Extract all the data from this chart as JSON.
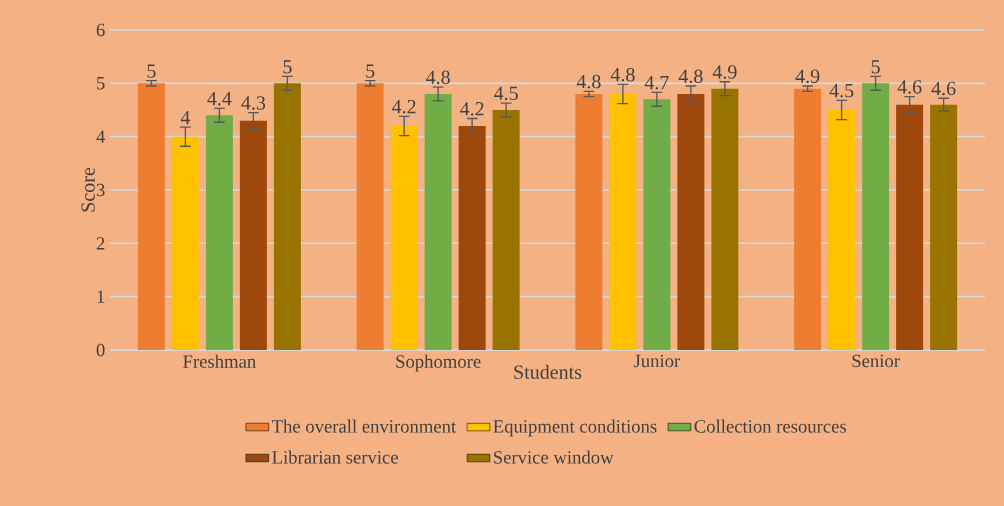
{
  "chart_data": {
    "type": "bar",
    "xlabel": "Students",
    "ylabel": "Score",
    "categories": [
      "Freshman",
      "Sophomore",
      "Junior",
      "Senior"
    ],
    "series": [
      {
        "name": "The overall environment",
        "color": "#ed7d31",
        "values": [
          5,
          5,
          4.8,
          4.9
        ],
        "errors": [
          0.05,
          0.05,
          0.05,
          0.05
        ]
      },
      {
        "name": "Equipment conditions",
        "color": "#ffc000",
        "values": [
          4,
          4.2,
          4.8,
          4.5
        ],
        "errors": [
          0.18,
          0.18,
          0.18,
          0.18
        ]
      },
      {
        "name": "Collection resources",
        "color": "#70ad47",
        "values": [
          4.4,
          4.8,
          4.7,
          5
        ],
        "errors": [
          0.13,
          0.13,
          0.13,
          0.13
        ]
      },
      {
        "name": "Librarian service",
        "color": "#9e480e",
        "values": [
          4.3,
          4.2,
          4.8,
          4.6
        ],
        "errors": [
          0.15,
          0.14,
          0.15,
          0.15
        ]
      },
      {
        "name": "Service window",
        "color": "#997300",
        "values": [
          5,
          4.5,
          4.9,
          4.6
        ],
        "errors": [
          0.13,
          0.13,
          0.13,
          0.12
        ]
      }
    ],
    "ylim": [
      0,
      6
    ],
    "yticks": [
      0,
      1,
      2,
      3,
      4,
      5,
      6
    ],
    "grid": "y",
    "legend": "bottom",
    "data_labels": true
  }
}
